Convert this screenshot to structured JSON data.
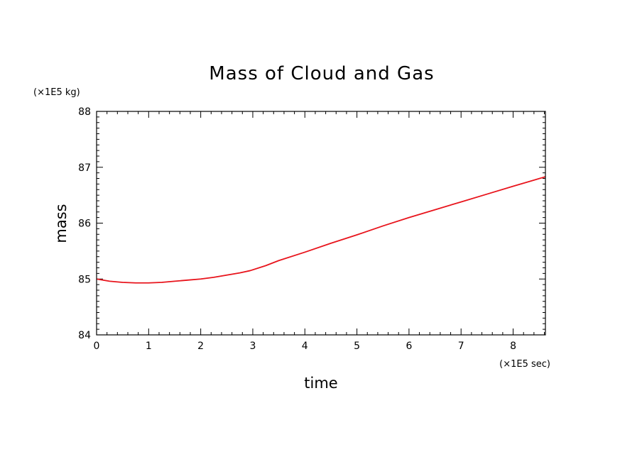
{
  "chart_data": {
    "type": "line",
    "title": "Mass of Cloud and Gas",
    "xlabel": "time",
    "ylabel": "mass",
    "x_unit": "(×1E5 sec)",
    "y_unit": "(×1E5 kg)",
    "xlim": [
      0,
      8.62
    ],
    "ylim": [
      84,
      88
    ],
    "x_ticks": [
      "0",
      "1",
      "2",
      "3",
      "4",
      "5",
      "6",
      "7",
      "8"
    ],
    "y_ticks": [
      "84",
      "85",
      "86",
      "87",
      "88"
    ],
    "grid": false,
    "legend": "none",
    "series": [
      {
        "color": "#e8141c",
        "x": [
          0,
          0.25,
          0.5,
          0.75,
          1.0,
          1.25,
          1.5,
          1.75,
          2.0,
          2.25,
          2.5,
          2.75,
          2.95,
          3.25,
          3.5,
          4.0,
          4.5,
          5.0,
          5.5,
          6.0,
          6.5,
          7.0,
          7.5,
          8.0,
          8.62
        ],
        "y": [
          85.0,
          84.96,
          84.94,
          84.93,
          84.93,
          84.94,
          84.96,
          84.98,
          85.0,
          85.03,
          85.07,
          85.11,
          85.15,
          85.24,
          85.33,
          85.48,
          85.64,
          85.79,
          85.95,
          86.1,
          86.24,
          86.38,
          86.52,
          86.66,
          86.83
        ]
      }
    ]
  }
}
